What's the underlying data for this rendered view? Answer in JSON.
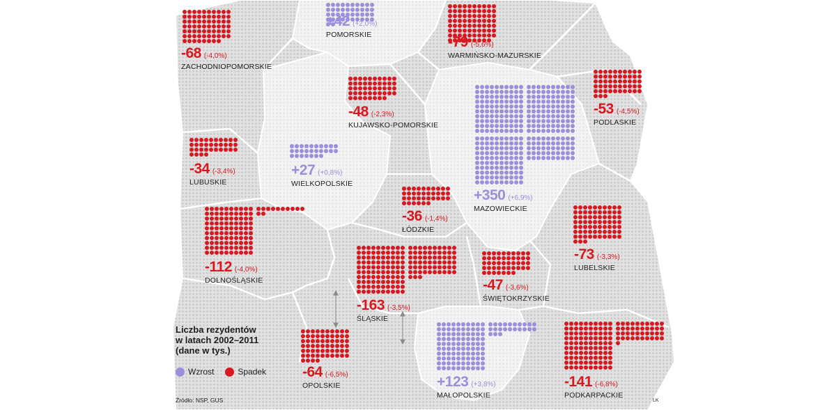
{
  "legend": {
    "title_lines": [
      "Liczba rezydentów",
      "w latach 2002–2011",
      "(dane w tys.)"
    ],
    "increase_label": "Wzrost",
    "decrease_label": "Spadek"
  },
  "source": "Źródło: NSP, GUS",
  "author": "LK",
  "colors": {
    "increase": "#9a8fdc",
    "decrease": "#d81820",
    "map_fill": "#dcdcdc",
    "map_dot": "#c4c4c4"
  },
  "regions": [
    {
      "id": "zachodniopomorskie",
      "name": "ZACHODNIOPOMORSKIE",
      "change": -68,
      "change_label": "-68",
      "pct_label": "(-4,0%)",
      "kind": "decrease"
    },
    {
      "id": "pomorskie",
      "name": "POMORSKIE",
      "change": 42,
      "change_label": "+42",
      "pct_label": "(+2,0%)",
      "kind": "increase"
    },
    {
      "id": "warminsko-mazurskie",
      "name": "WARMIŃSKO-MAZURSKIE",
      "change": -79,
      "change_label": "-79",
      "pct_label": "(-5,6%)",
      "kind": "decrease"
    },
    {
      "id": "podlaskie",
      "name": "PODLASKIE",
      "change": -53,
      "change_label": "-53",
      "pct_label": "(-4,5%)",
      "kind": "decrease"
    },
    {
      "id": "kujawsko-pomorskie",
      "name": "KUJAWSKO-POMORSKIE",
      "change": -48,
      "change_label": "-48",
      "pct_label": "(-2,3%)",
      "kind": "decrease"
    },
    {
      "id": "lubuskie",
      "name": "LUBUSKIE",
      "change": -34,
      "change_label": "-34",
      "pct_label": "(-3,4%)",
      "kind": "decrease"
    },
    {
      "id": "wielkopolskie",
      "name": "WIELKOPOLSKIE",
      "change": 27,
      "change_label": "+27",
      "pct_label": "(+0,8%)",
      "kind": "increase"
    },
    {
      "id": "mazowieckie",
      "name": "MAZOWIECKIE",
      "change": 350,
      "change_label": "+350",
      "pct_label": "(+6,9%)",
      "kind": "increase"
    },
    {
      "id": "lodzkie",
      "name": "ŁÓDZKIE",
      "change": -36,
      "change_label": "-36",
      "pct_label": "(-1,4%)",
      "kind": "decrease"
    },
    {
      "id": "dolnoslaskie",
      "name": "DOLNOŚLĄSKIE",
      "change": -112,
      "change_label": "-112",
      "pct_label": "(-4,0%)",
      "kind": "decrease"
    },
    {
      "id": "slaskie",
      "name": "ŚLĄSKIE",
      "change": -163,
      "change_label": "-163",
      "pct_label": "(-3,5%)",
      "kind": "decrease"
    },
    {
      "id": "swietokrzyskie",
      "name": "ŚWIĘTOKRZYSKIE",
      "change": -47,
      "change_label": "-47",
      "pct_label": "(-3,6%)",
      "kind": "decrease"
    },
    {
      "id": "lubelskie",
      "name": "LUBELSKIE",
      "change": -73,
      "change_label": "-73",
      "pct_label": "(-3,3%)",
      "kind": "decrease"
    },
    {
      "id": "opolskie",
      "name": "OPOLSKIE",
      "change": -64,
      "change_label": "-64",
      "pct_label": "(-6,5%)",
      "kind": "decrease"
    },
    {
      "id": "malopolskie",
      "name": "MAŁOPOLSKIE",
      "change": 123,
      "change_label": "+123",
      "pct_label": "(+3,8%)",
      "kind": "increase"
    },
    {
      "id": "podkarpackie",
      "name": "PODKARPACKIE",
      "change": -141,
      "change_label": "-141",
      "pct_label": "(-6,8%)",
      "kind": "decrease"
    }
  ]
}
